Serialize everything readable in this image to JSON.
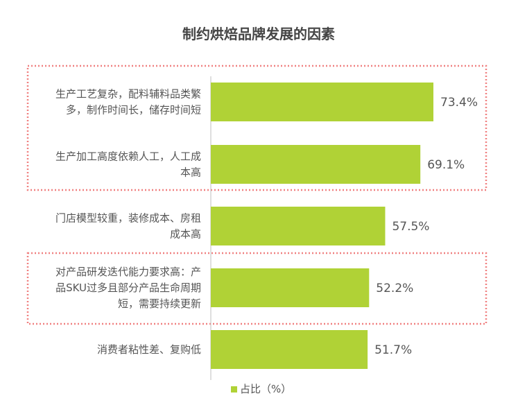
{
  "chart_data": {
    "type": "bar",
    "orientation": "horizontal",
    "title": "制约烘焙品牌发展的因素",
    "categories": [
      [
        "生产工艺复杂，配料辅料品类繁",
        "多，制作时间长，储存时间短"
      ],
      [
        "生产加工高度依赖人工，人工成",
        "本高"
      ],
      [
        "门店模型较重，装修成本、房租",
        "成本高"
      ],
      [
        "对产品研发迭代能力要求高：产",
        "品SKU过多且部分产品生命周期",
        "短，需要持续更新"
      ],
      [
        "消费者粘性差、复购低"
      ]
    ],
    "series": [
      {
        "name": "占比（%）",
        "values": [
          73.4,
          69.1,
          57.5,
          52.2,
          51.7
        ],
        "labels": [
          "73.4%",
          "69.1%",
          "57.5%",
          "52.2%",
          "51.7%"
        ]
      }
    ],
    "xlim": [
      0,
      100
    ],
    "grid": false,
    "legend": "bottom",
    "colors": {
      "bar": "#B0D236",
      "text": "#555555",
      "title": "#444444",
      "axis": "#BFBFBF",
      "highlight_border": "#F08080"
    },
    "highlight_groups": [
      [
        0,
        1
      ],
      [
        3
      ]
    ]
  }
}
